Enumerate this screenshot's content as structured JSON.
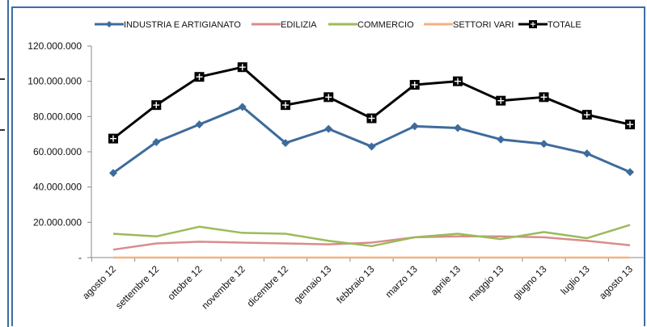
{
  "chart_data": {
    "type": "line",
    "categories": [
      "agosto 12",
      "settembre 12",
      "ottobre 12",
      "novembre 12",
      "dicembre 12",
      "gennaio 13",
      "febbraio 13",
      "marzo 13",
      "aprile 13",
      "maggio 13",
      "giugno 13",
      "luglio 13",
      "agosto 13"
    ],
    "ylim": [
      0,
      120000000
    ],
    "yticks": [
      {
        "value": 0,
        "label": "-"
      },
      {
        "value": 20000000,
        "label": "20.000.000"
      },
      {
        "value": 40000000,
        "label": "40.000.000"
      },
      {
        "value": 60000000,
        "label": "60.000.000"
      },
      {
        "value": 80000000,
        "label": "80.000.000"
      },
      {
        "value": 100000000,
        "label": "100.000.000"
      },
      {
        "value": 120000000,
        "label": "120.000.000"
      }
    ],
    "legend_position": "top",
    "grid": false,
    "series": [
      {
        "name": "INDUSTRIA E ARTIGIANATO",
        "color": "#3e6b9c",
        "marker": "diamond",
        "values": [
          48000000,
          65500000,
          75500000,
          85500000,
          65000000,
          73000000,
          63000000,
          74500000,
          73500000,
          67000000,
          64500000,
          59000000,
          48500000
        ]
      },
      {
        "name": "EDILIZIA",
        "color": "#d98c8c",
        "marker": "none",
        "values": [
          4500000,
          8000000,
          9000000,
          8500000,
          8000000,
          7500000,
          8500000,
          11500000,
          12000000,
          12000000,
          11500000,
          9500000,
          7000000
        ]
      },
      {
        "name": "COMMERCIO",
        "color": "#9bbb59",
        "marker": "none",
        "values": [
          13500000,
          12000000,
          17500000,
          14000000,
          13500000,
          9500000,
          6500000,
          11500000,
          13500000,
          10500000,
          14500000,
          11000000,
          18500000
        ]
      },
      {
        "name": "SETTORI VARI",
        "color": "#f5b183",
        "marker": "none",
        "values": [
          0,
          0,
          0,
          0,
          0,
          0,
          0,
          0,
          0,
          0,
          0,
          0,
          0
        ]
      },
      {
        "name": "TOTALE",
        "color": "#000000",
        "marker": "square-plus",
        "values": [
          67500000,
          86500000,
          102500000,
          108000000,
          86500000,
          91000000,
          79000000,
          98000000,
          100000000,
          89000000,
          91000000,
          81000000,
          75500000
        ]
      }
    ]
  }
}
